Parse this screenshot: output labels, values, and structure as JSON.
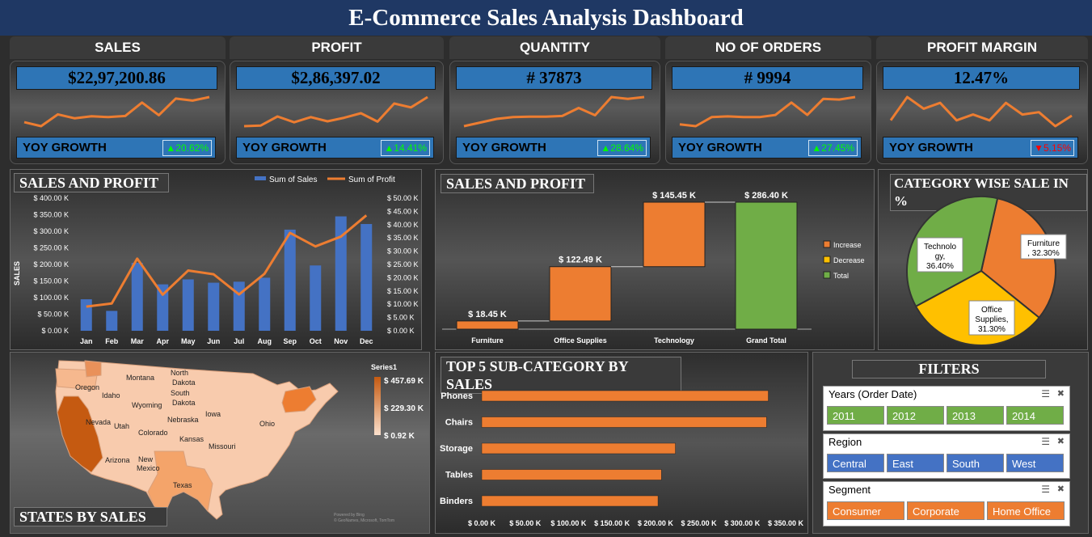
{
  "title": "E-Commerce Sales Analysis Dashboard",
  "kpis": [
    {
      "label": "SALES",
      "value": "$22,97,200.86",
      "yoy_label": "YOY GROWTH",
      "yoy": "▲20.62%",
      "yoy_color": "#00ff00",
      "trend": [
        3,
        2,
        5,
        4,
        4.5,
        4.3,
        4.6,
        8,
        4.8,
        9,
        8.5,
        9.4
      ]
    },
    {
      "label": "PROFIT",
      "value": "$2,86,397.02",
      "yoy_label": "YOY GROWTH",
      "yoy": "▲14.41%",
      "yoy_color": "#00ff00",
      "trend": [
        2,
        2.2,
        5,
        3.2,
        4.8,
        3.5,
        4.6,
        6,
        3.4,
        9,
        7.8,
        11
      ]
    },
    {
      "label": "QUANTITY",
      "value": "# 37873",
      "yoy_label": "YOY GROWTH",
      "yoy": "▲28.64%",
      "yoy_color": "#00ff00",
      "trend": [
        3,
        4,
        5,
        5.5,
        5.6,
        5.6,
        5.8,
        8,
        6,
        11,
        10.5,
        11
      ]
    },
    {
      "label": "NO OF ORDERS",
      "value": "# 9994",
      "yoy_label": "YOY GROWTH",
      "yoy": "▲27.45%",
      "yoy_color": "#00ff00",
      "trend": [
        3,
        2.5,
        5,
        5.2,
        5,
        5,
        5.6,
        9,
        5.6,
        10,
        9.8,
        10.5
      ]
    },
    {
      "label": "PROFIT MARGIN",
      "value": "12.47%",
      "yoy_label": "YOY GROWTH",
      "yoy": "▼5.15%",
      "yoy_color": "#ff0000",
      "trend": [
        5,
        9,
        7,
        8,
        5,
        6,
        5,
        8,
        6,
        6.4,
        4,
        5.8
      ]
    }
  ],
  "sales_profit_combo": {
    "title": "SALES AND PROFIT",
    "ylabel": "SALES",
    "legend": [
      "Sum of Sales",
      "Sum of Profit"
    ],
    "left_ticks": [
      "$ 0.00 K",
      "$ 50.00 K",
      "$ 100.00 K",
      "$ 150.00 K",
      "$ 200.00 K",
      "$ 250.00 K",
      "$ 300.00 K",
      "$ 350.00 K",
      "$ 400.00 K"
    ],
    "right_ticks": [
      "$ 0.00 K",
      "$ 5.00 K",
      "$ 10.00 K",
      "$ 15.00 K",
      "$ 20.00 K",
      "$ 25.00 K",
      "$ 30.00 K",
      "$ 35.00 K",
      "$ 40.00 K",
      "$ 45.00 K",
      "$ 50.00 K"
    ]
  },
  "waterfall": {
    "title": "SALES AND PROFIT",
    "legend": [
      "Increase",
      "Decrease",
      "Total"
    ],
    "bar_labels": [
      "$ 18.45 K",
      "$ 122.49 K",
      "$ 145.45 K",
      "$ 286.40 K"
    ]
  },
  "pie": {
    "title": "CATEGORY WISE SALE IN %",
    "labels": [
      [
        "Furniture",
        ", 32.30%"
      ],
      [
        "Office",
        "Supplies,",
        "31.30%"
      ],
      [
        "Technolo",
        "gy,",
        "36.40%"
      ]
    ]
  },
  "map": {
    "title": "STATES BY SALES",
    "legend_title": "Series1",
    "legend_ticks": [
      "$ 457.69 K",
      "$ 229.30 K",
      "$ 0.92 K"
    ],
    "states": [
      "Montana",
      "North",
      "Dakota",
      "Oregon",
      "Idaho",
      "South",
      "Dakota",
      "Wyoming",
      "Nebraska",
      "Iowa",
      "Nevada",
      "Utah",
      "Colorado",
      "Kansas",
      "Missouri",
      "Ohio",
      "Arizona",
      "New",
      "Mexico",
      "Texas"
    ],
    "credit": "Powered by Bing\n© GeoNames, Microsoft, TomTom"
  },
  "top5": {
    "title": "TOP 5 SUB-CATEGORY BY SALES",
    "x_ticks": [
      "$ 0.00 K",
      "$ 50.00 K",
      "$ 100.00 K",
      "$ 150.00 K",
      "$ 200.00 K",
      "$ 250.00 K",
      "$ 300.00 K",
      "$ 350.00 K"
    ]
  },
  "filters": {
    "title": "FILTERS",
    "slicers": [
      {
        "title": "Years (Order Date)",
        "items": [
          "2011",
          "2012",
          "2013",
          "2014"
        ],
        "color": "#70ad47"
      },
      {
        "title": "Region",
        "items": [
          "Central",
          "East",
          "South",
          "West"
        ],
        "color": "#4472c4"
      },
      {
        "title": "Segment",
        "items": [
          "Consumer",
          "Corporate",
          "Home Office"
        ],
        "color": "#ed7d31"
      }
    ]
  },
  "chart_data": [
    {
      "type": "bar+line",
      "title": "SALES AND PROFIT",
      "categories": [
        "Jan",
        "Feb",
        "Mar",
        "Apr",
        "May",
        "Jun",
        "Jul",
        "Aug",
        "Sep",
        "Oct",
        "Nov",
        "Dec"
      ],
      "series": [
        {
          "name": "Sum of Sales",
          "axis": "left",
          "values": [
            95,
            60,
            205,
            140,
            155,
            145,
            148,
            160,
            305,
            197,
            345,
            322
          ]
        },
        {
          "name": "Sum of Profit",
          "axis": "right",
          "values": [
            9.1,
            10.3,
            27.2,
            13.6,
            22.7,
            21.3,
            13.7,
            21.5,
            36.9,
            31.8,
            35.5,
            43.5
          ]
        }
      ],
      "ylabel": "SALES",
      "ylim": [
        0,
        400
      ],
      "y2lim": [
        0,
        50
      ],
      "legend": "top-right"
    },
    {
      "type": "waterfall",
      "title": "SALES AND PROFIT",
      "categories": [
        "Furniture",
        "Office Supplies",
        "Technology",
        "Grand Total"
      ],
      "values": [
        18.45,
        122.49,
        145.45,
        286.4
      ],
      "kinds": [
        "Increase",
        "Increase",
        "Increase",
        "Total"
      ]
    },
    {
      "type": "pie",
      "title": "CATEGORY WISE SALE IN %",
      "categories": [
        "Furniture",
        "Office Supplies",
        "Technology"
      ],
      "values": [
        32.3,
        31.3,
        36.4
      ]
    },
    {
      "type": "bar",
      "orientation": "horizontal",
      "title": "TOP 5 SUB-CATEGORY BY SALES",
      "categories": [
        "Phones",
        "Chairs",
        "Storage",
        "Tables",
        "Binders"
      ],
      "values": [
        330,
        328,
        223,
        207,
        203
      ],
      "xlim": [
        0,
        350
      ]
    }
  ]
}
